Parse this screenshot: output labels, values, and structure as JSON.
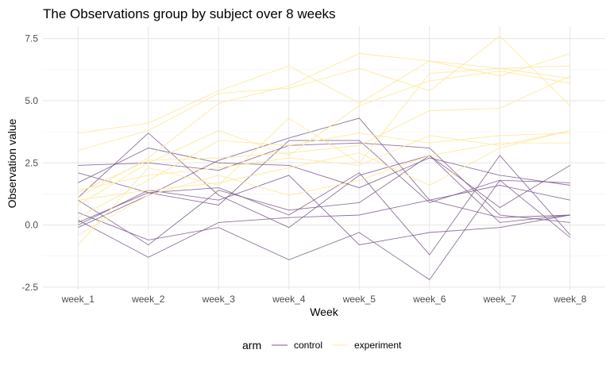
{
  "chart_data": {
    "type": "line",
    "title": "The Observations group by subject over 8 weeks",
    "xlabel": "Week",
    "ylabel": "Observation value",
    "categories": [
      "week_1",
      "week_2",
      "week_3",
      "week_4",
      "week_5",
      "week_6",
      "week_7",
      "week_8"
    ],
    "ylim": [
      -2.6,
      8.0
    ],
    "yticks": [
      -2.5,
      0.0,
      2.5,
      5.0,
      7.5
    ],
    "ytick_labels": [
      "-2.5",
      "0.0",
      "2.5",
      "5.0",
      "7.5"
    ],
    "grid": true,
    "legend": {
      "title": "arm",
      "placement": "bottom",
      "entries": [
        {
          "label": "control",
          "color": "#7b5a8c"
        },
        {
          "label": "experiment",
          "color": "#fde9a0"
        }
      ]
    },
    "series": [
      {
        "group": "control",
        "values": [
          0.2,
          -1.3,
          0.1,
          0.3,
          0.4,
          1.0,
          0.3,
          0.4
        ]
      },
      {
        "group": "control",
        "values": [
          1.1,
          3.7,
          1.2,
          -0.1,
          2.0,
          2.8,
          0.1,
          0.4
        ]
      },
      {
        "group": "control",
        "values": [
          0.1,
          1.3,
          0.8,
          3.4,
          3.4,
          0.9,
          1.8,
          -0.5
        ]
      },
      {
        "group": "control",
        "values": [
          -0.1,
          1.2,
          2.6,
          3.5,
          4.3,
          1.0,
          1.6,
          1.0
        ]
      },
      {
        "group": "control",
        "values": [
          0.5,
          -0.6,
          -0.1,
          -1.4,
          -0.3,
          -2.2,
          1.8,
          1.7
        ]
      },
      {
        "group": "control",
        "values": [
          2.4,
          2.5,
          2.2,
          3.2,
          3.3,
          3.1,
          0.4,
          0.1
        ]
      },
      {
        "group": "control",
        "values": [
          1.7,
          3.1,
          2.5,
          2.4,
          1.5,
          2.7,
          2.0,
          1.6
        ]
      },
      {
        "group": "control",
        "values": [
          1.0,
          -0.8,
          1.4,
          0.6,
          0.9,
          2.8,
          0.7,
          2.4
        ]
      },
      {
        "group": "control",
        "values": [
          0.0,
          1.4,
          1.0,
          2.0,
          -0.8,
          -0.3,
          -0.1,
          0.4
        ]
      },
      {
        "group": "control",
        "values": [
          2.1,
          1.3,
          1.5,
          0.4,
          2.1,
          -1.2,
          2.8,
          -0.4
        ]
      },
      {
        "group": "experiment",
        "values": [
          3.7,
          4.1,
          5.4,
          6.4,
          4.9,
          6.6,
          6.3,
          5.9
        ]
      },
      {
        "group": "experiment",
        "values": [
          3.0,
          3.8,
          5.3,
          5.5,
          6.3,
          5.4,
          7.6,
          4.8
        ]
      },
      {
        "group": "experiment",
        "values": [
          1.1,
          2.7,
          4.9,
          5.6,
          6.9,
          6.6,
          6.0,
          6.9
        ]
      },
      {
        "group": "experiment",
        "values": [
          0.8,
          2.5,
          3.8,
          2.8,
          4.8,
          5.8,
          6.2,
          5.7
        ]
      },
      {
        "group": "experiment",
        "values": [
          -0.8,
          2.3,
          1.6,
          4.3,
          2.5,
          6.1,
          6.3,
          6.4
        ]
      },
      {
        "group": "experiment",
        "values": [
          1.3,
          2.6,
          2.7,
          2.9,
          3.2,
          4.6,
          4.7,
          6.0
        ]
      },
      {
        "group": "experiment",
        "values": [
          0.3,
          1.8,
          3.4,
          3.2,
          3.7,
          3.3,
          3.6,
          3.7
        ]
      },
      {
        "group": "experiment",
        "values": [
          1.4,
          2.0,
          2.3,
          2.7,
          2.4,
          3.6,
          3.2,
          3.8
        ]
      },
      {
        "group": "experiment",
        "values": [
          -0.4,
          1.2,
          2.0,
          1.2,
          1.8,
          2.8,
          3.3,
          3.3
        ]
      },
      {
        "group": "experiment",
        "values": [
          1.0,
          1.4,
          1.7,
          2.3,
          2.9,
          1.6,
          3.1,
          3.8
        ]
      }
    ]
  }
}
